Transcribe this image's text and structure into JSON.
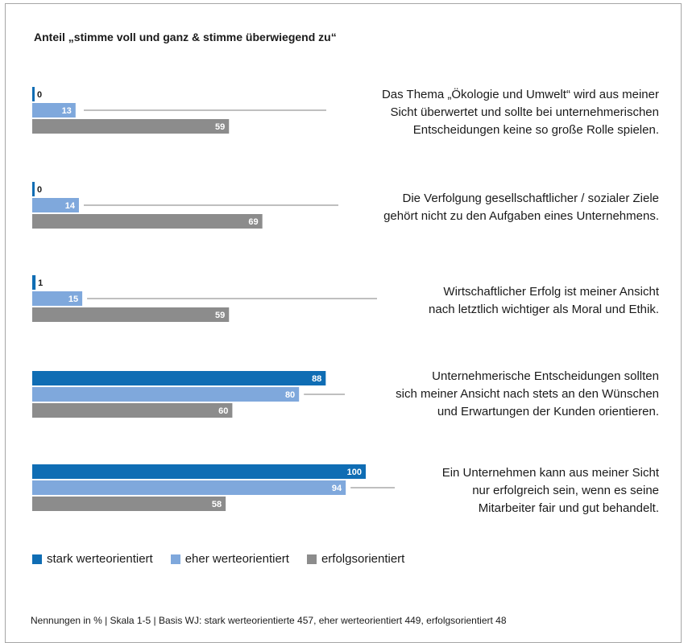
{
  "title": "Anteil „stimme voll und ganz & stimme überwiegend zu“",
  "colors": {
    "stark": "#0f6db4",
    "eher": "#7fa8dc",
    "erfolg": "#8c8c8c"
  },
  "legend": [
    {
      "label": "stark werteorientiert",
      "color": "#0f6db4"
    },
    {
      "label": "eher werteorientiert",
      "color": "#7fa8dc"
    },
    {
      "label": "erfolgsorientiert",
      "color": "#8c8c8c"
    }
  ],
  "footer": "Nennungen  in %  |  Skala 1-5  |  Basis WJ: stark werteorientierte 457, eher werteorientiert 449, erfolgsorientiert 48",
  "questions": [
    {
      "lines": [
        "Das Thema „Ökologie und Umwelt“ wird aus meiner",
        "Sicht überwertet und sollte bei unternehmerischen",
        "Entscheidungen keine so große Rolle spielen."
      ]
    },
    {
      "lines": [
        "Die Verfolgung gesellschaftlicher / sozialer Ziele",
        "gehört nicht zu den Aufgaben eines Unternehmens."
      ]
    },
    {
      "lines": [
        "Wirtschaftlicher Erfolg ist meiner Ansicht",
        "nach letztlich wichtiger als Moral und Ethik."
      ]
    },
    {
      "lines": [
        "Unternehmerische Entscheidungen sollten",
        "sich meiner Ansicht nach stets an den Wünschen",
        "und Erwartungen der Kunden orientieren."
      ]
    },
    {
      "lines": [
        "Ein Unternehmen kann aus meiner Sicht",
        "nur erfolgreich sein, wenn es seine",
        "Mitarbeiter fair und gut behandelt."
      ]
    }
  ],
  "chart_data": {
    "type": "bar",
    "orientation": "horizontal",
    "title": "Anteil „stimme voll und ganz & stimme überwiegend zu“",
    "categories": [
      "Das Thema „Ökologie und Umwelt“ wird aus meiner Sicht überwertet und sollte bei unternehmerischen Entscheidungen keine so große Rolle spielen.",
      "Die Verfolgung gesellschaftlicher / sozialer Ziele gehört nicht zu den Aufgaben eines Unternehmens.",
      "Wirtschaftlicher Erfolg ist meiner Ansicht nach letztlich wichtiger als Moral und Ethik.",
      "Unternehmerische Entscheidungen sollten sich meiner Ansicht nach stets an den Wünschen und Erwartungen der Kunden orientieren.",
      "Ein Unternehmen kann aus meiner Sicht nur erfolgreich sein, wenn es seine Mitarbeiter fair und gut behandelt."
    ],
    "series": [
      {
        "name": "stark werteorientiert",
        "values": [
          0,
          0,
          1,
          88,
          100
        ]
      },
      {
        "name": "eher werteorientiert",
        "values": [
          13,
          14,
          15,
          80,
          94
        ]
      },
      {
        "name": "erfolgsorientiert",
        "values": [
          59,
          69,
          59,
          60,
          58
        ]
      }
    ],
    "xlim": [
      0,
      100
    ],
    "legend_position": "bottom-left",
    "grid": false
  }
}
